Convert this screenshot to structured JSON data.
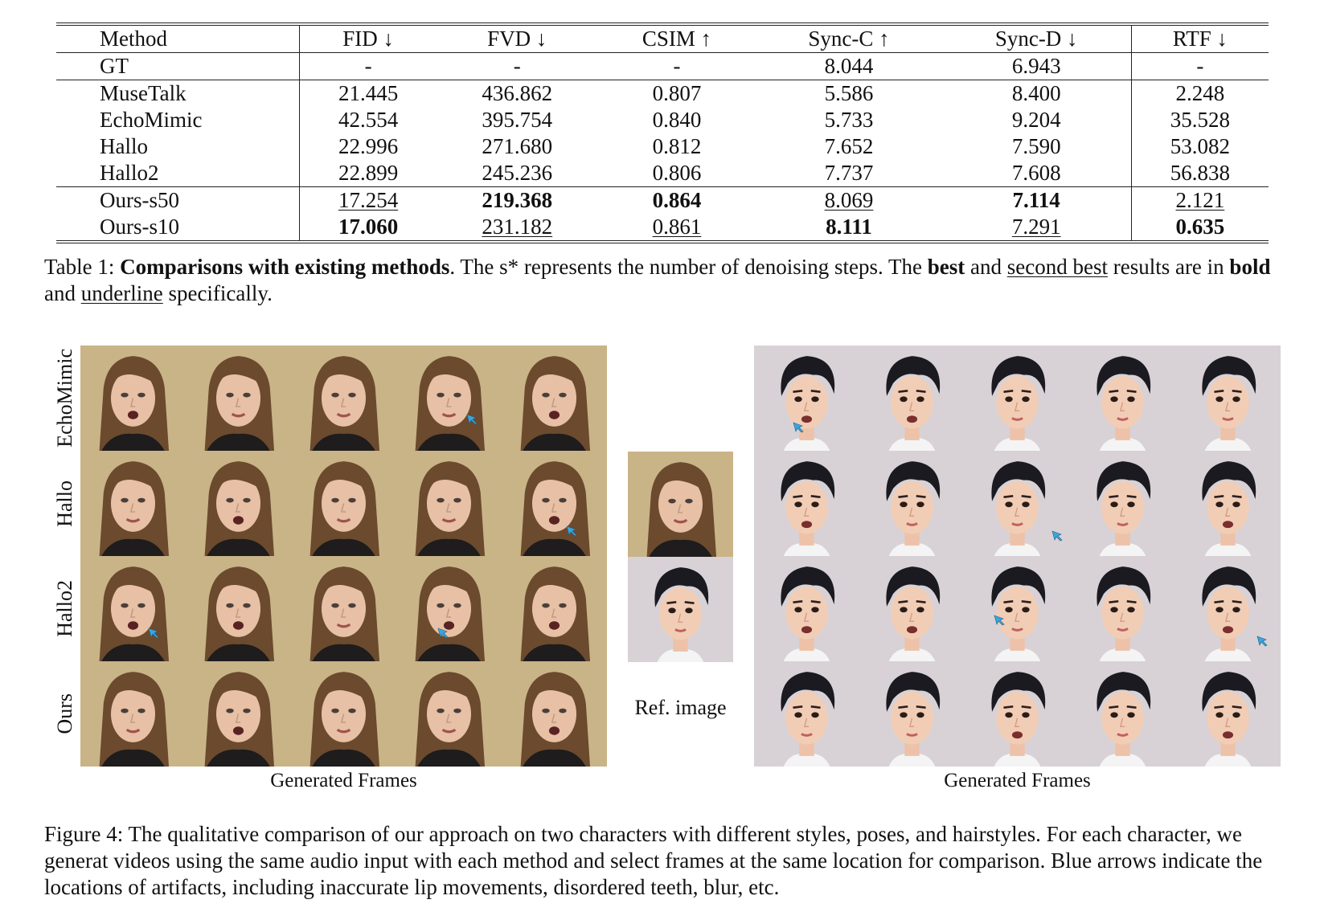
{
  "table": {
    "headers": [
      "Method",
      "FID ↓",
      "FVD ↓",
      "CSIM ↑",
      "Sync-C ↑",
      "Sync-D ↓",
      "RTF ↓"
    ],
    "gt_row": [
      "GT",
      "-",
      "-",
      "-",
      "8.044",
      "6.943",
      "-"
    ],
    "baseline_rows": [
      [
        "MuseTalk",
        "21.445",
        "436.862",
        "0.807",
        "5.586",
        "8.400",
        "2.248"
      ],
      [
        "EchoMimic",
        "42.554",
        "395.754",
        "0.840",
        "5.733",
        "9.204",
        "35.528"
      ],
      [
        "Hallo",
        "22.996",
        "271.680",
        "0.812",
        "7.652",
        "7.590",
        "53.082"
      ],
      [
        "Hallo2",
        "22.899",
        "245.236",
        "0.806",
        "7.737",
        "7.608",
        "56.838"
      ]
    ],
    "ours_rows": [
      [
        "Ours-s50",
        "17.254",
        "219.368",
        "0.864",
        "8.069",
        "7.114",
        "2.121"
      ],
      [
        "Ours-s10",
        "17.060",
        "231.182",
        "0.861",
        "8.111",
        "7.291",
        "0.635"
      ]
    ]
  },
  "table_caption": {
    "prefix": "Table 1: ",
    "title": "Comparisons with existing methods",
    "text1": ". The s* represents the number of denoising steps. The ",
    "best": "best",
    "text2": " and ",
    "second_best": "second best",
    "text3": " results are in ",
    "bold": "bold",
    "text4": " and ",
    "underline": "underline",
    "text5": " specifically."
  },
  "figure": {
    "row_labels": [
      "EchoMimic",
      "Hallo",
      "Hallo2",
      "Ours"
    ],
    "ref_label": "Ref. image",
    "generated_label_left": "Generated Frames",
    "generated_label_right": "Generated Frames"
  },
  "figure_caption": "Figure 4: The qualitative comparison of our approach on two characters with different styles, poses, and hairstyles. For each character, we generat videos using the same audio input with each method and select frames at the same location for comparison. Blue arrows indicate the locations of artifacts, including inaccurate lip movements, disordered teeth, blur, etc.",
  "colors": {
    "arrow": "#3aa6dd",
    "woman_bg": "#c9b488",
    "man_bg": "#d8d2d6"
  }
}
